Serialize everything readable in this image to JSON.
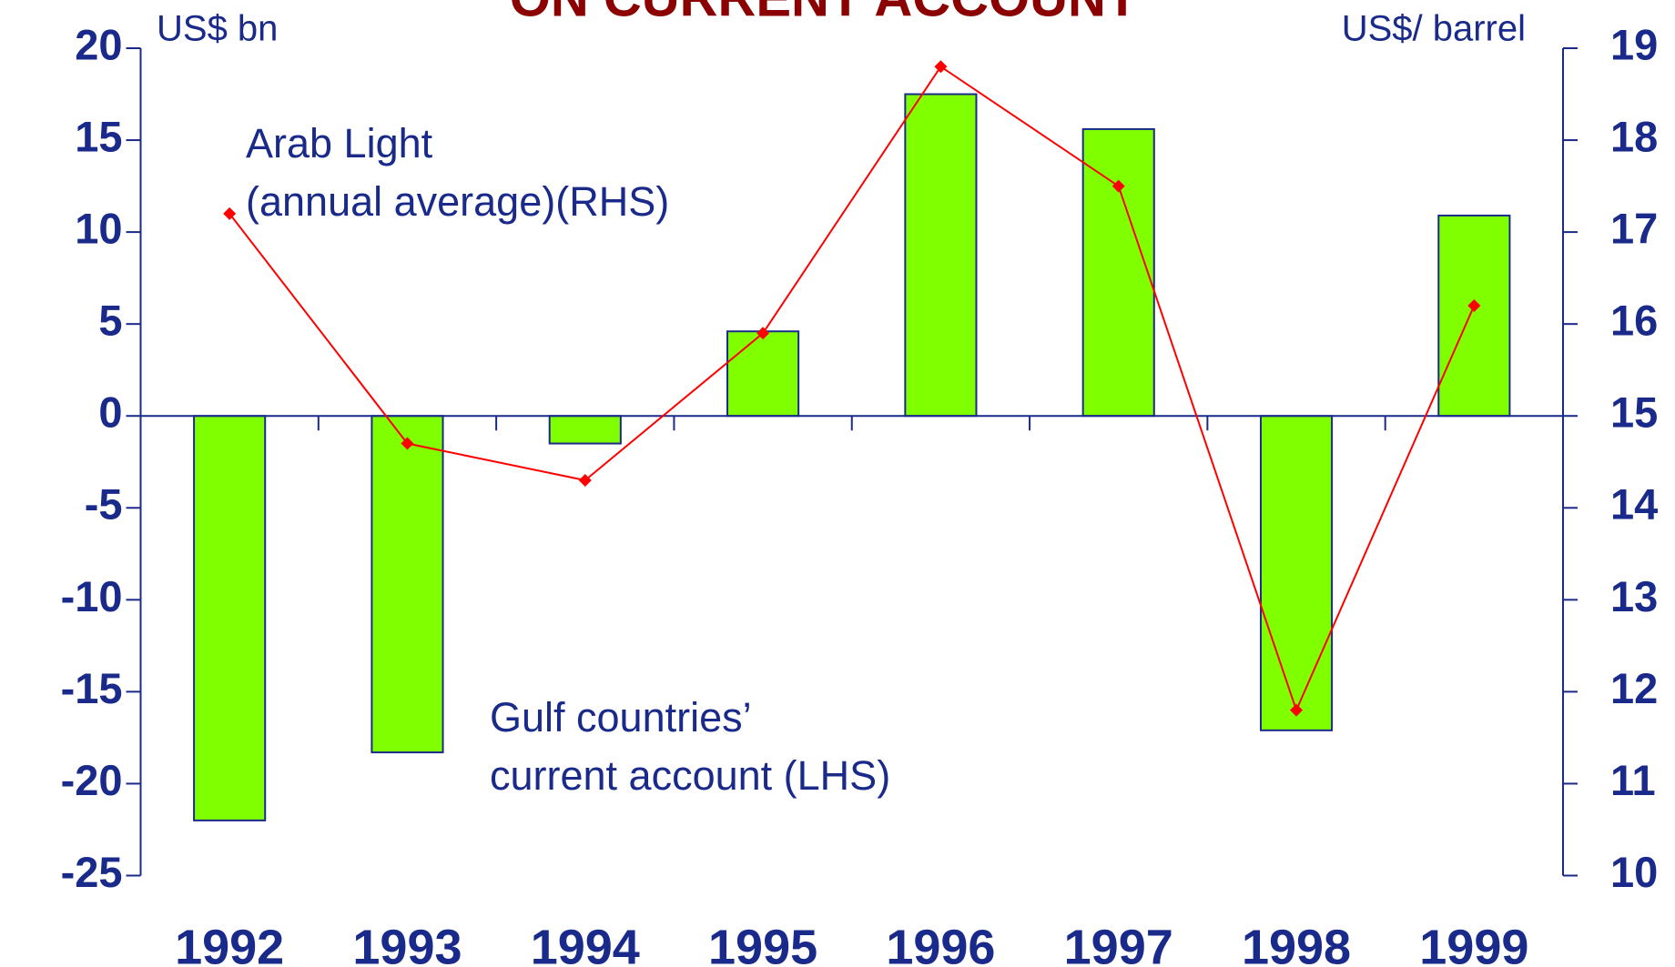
{
  "chart_data": {
    "type": "bar",
    "title": "ON CURRENT ACCOUNT",
    "y_label": "US$ bn",
    "y2_label": "US$/ barrel",
    "categories": [
      "1992",
      "1993",
      "1994",
      "1995",
      "1996",
      "1997",
      "1998",
      "1999"
    ],
    "series": [
      {
        "name": "Gulf countries’ current account (LHS)",
        "type": "bar",
        "axis": "y",
        "color": "#80ff00",
        "values": [
          -22,
          -18.3,
          -1.5,
          4.6,
          17.5,
          15.6,
          -17.1,
          10.9
        ]
      },
      {
        "name": "Arab Light (annual average)(RHS)",
        "type": "line",
        "axis": "y2",
        "color": "#ff0000",
        "values": [
          17.2,
          14.7,
          14.3,
          15.9,
          18.8,
          17.5,
          11.8,
          16.2
        ]
      }
    ],
    "annotations": [
      {
        "lines": [
          "Arab Light",
          "(annual average)(RHS)"
        ]
      },
      {
        "lines": [
          "Gulf countries’",
          "current account (LHS)"
        ]
      }
    ],
    "ylim": [
      -25,
      20
    ],
    "yticks": [
      -25,
      -20,
      -15,
      -10,
      -5,
      0,
      5,
      10,
      15,
      20
    ],
    "y2lim": [
      10,
      19
    ],
    "y2ticks": [
      10,
      11,
      12,
      13,
      14,
      15,
      16,
      17,
      18,
      19
    ]
  }
}
